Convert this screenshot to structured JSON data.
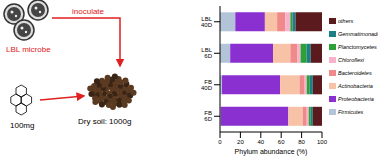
{
  "chart_data": {
    "type": "bar",
    "orientation": "horizontal",
    "stacked": true,
    "categories": [
      "LBL 40D",
      "LBL 6D",
      "FB 40D",
      "FB 6D"
    ],
    "x_label": "Phylum abundance (%)",
    "xlim": [
      0,
      100
    ],
    "xticks": [
      0,
      20,
      40,
      60,
      80,
      100
    ],
    "legend": "right",
    "series": [
      {
        "name": "Firmicutes",
        "color": "#b4c4d8",
        "values": [
          15,
          10,
          2,
          1
        ]
      },
      {
        "name": "Proteobacteria",
        "color": "#8a2fd0",
        "values": [
          29,
          42,
          57,
          66
        ]
      },
      {
        "name": "Actinobacteria",
        "color": "#f7c2a6",
        "values": [
          12,
          17,
          19,
          14
        ]
      },
      {
        "name": "Bacteroidetes",
        "color": "#f08a8a",
        "values": [
          8,
          7,
          5,
          4
        ]
      },
      {
        "name": "Chloroflexi",
        "color": "#f7b3cc",
        "values": [
          5,
          3,
          2,
          2
        ]
      },
      {
        "name": "Planctomycetes",
        "color": "#2ea03a",
        "values": [
          2,
          6,
          3,
          2
        ]
      },
      {
        "name": "Gemmatimonadetes",
        "color": "#1d7f86",
        "values": [
          3,
          4,
          3,
          2
        ]
      },
      {
        "name": "others",
        "color": "#5a1a1e",
        "values": [
          26,
          11,
          9,
          9
        ]
      }
    ]
  },
  "diagram": {
    "microbe_label": "LBL microbe",
    "arrow_label": "inoculate",
    "pyrene_label": "100mg",
    "soil_label": "Dry soil: 1000g"
  }
}
